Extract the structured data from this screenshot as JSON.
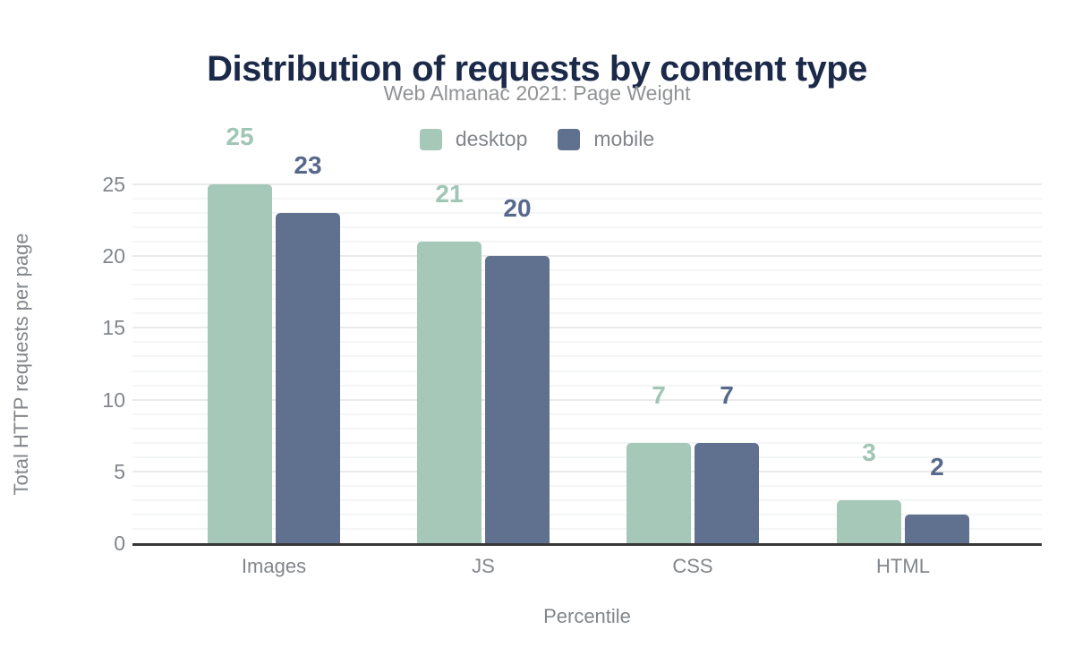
{
  "title": "Distribution of requests by content type",
  "subtitle": "Web Almanac 2021: Page Weight",
  "axis": {
    "y_title": "Total HTTP requests per page",
    "x_title": "Percentile"
  },
  "colors": {
    "title_text": "#1c2a4a",
    "subtitle_text": "#909294",
    "muted_text": "#82868a",
    "axis_line": "#373737",
    "grid_major": "#e9eaeb",
    "grid_minor": "#f4f5f5",
    "desktop": "#a5c8b9",
    "mobile": "#60718f",
    "desktop_value_label": "#a0c6b5",
    "mobile_value_label": "#57698b"
  },
  "chart_data": {
    "type": "bar",
    "title": "Distribution of requests by content type",
    "subtitle": "Web Almanac 2021: Page Weight",
    "categories": [
      "Images",
      "JS",
      "CSS",
      "HTML"
    ],
    "series": [
      {
        "name": "desktop",
        "color": "#a5c8b9",
        "values": [
          25,
          21,
          7,
          3
        ]
      },
      {
        "name": "mobile",
        "color": "#60718f",
        "values": [
          23,
          20,
          7,
          2
        ]
      }
    ],
    "xlabel": "Percentile",
    "ylabel": "Total HTTP requests per page",
    "ylim": [
      0,
      25
    ],
    "yticks": [
      0,
      5,
      10,
      15,
      20,
      25
    ],
    "grid": "horizontal; minor every 1 unit, major every 5 units",
    "legend_position": "top-center",
    "value_labels": "above each bar, colored per series"
  }
}
